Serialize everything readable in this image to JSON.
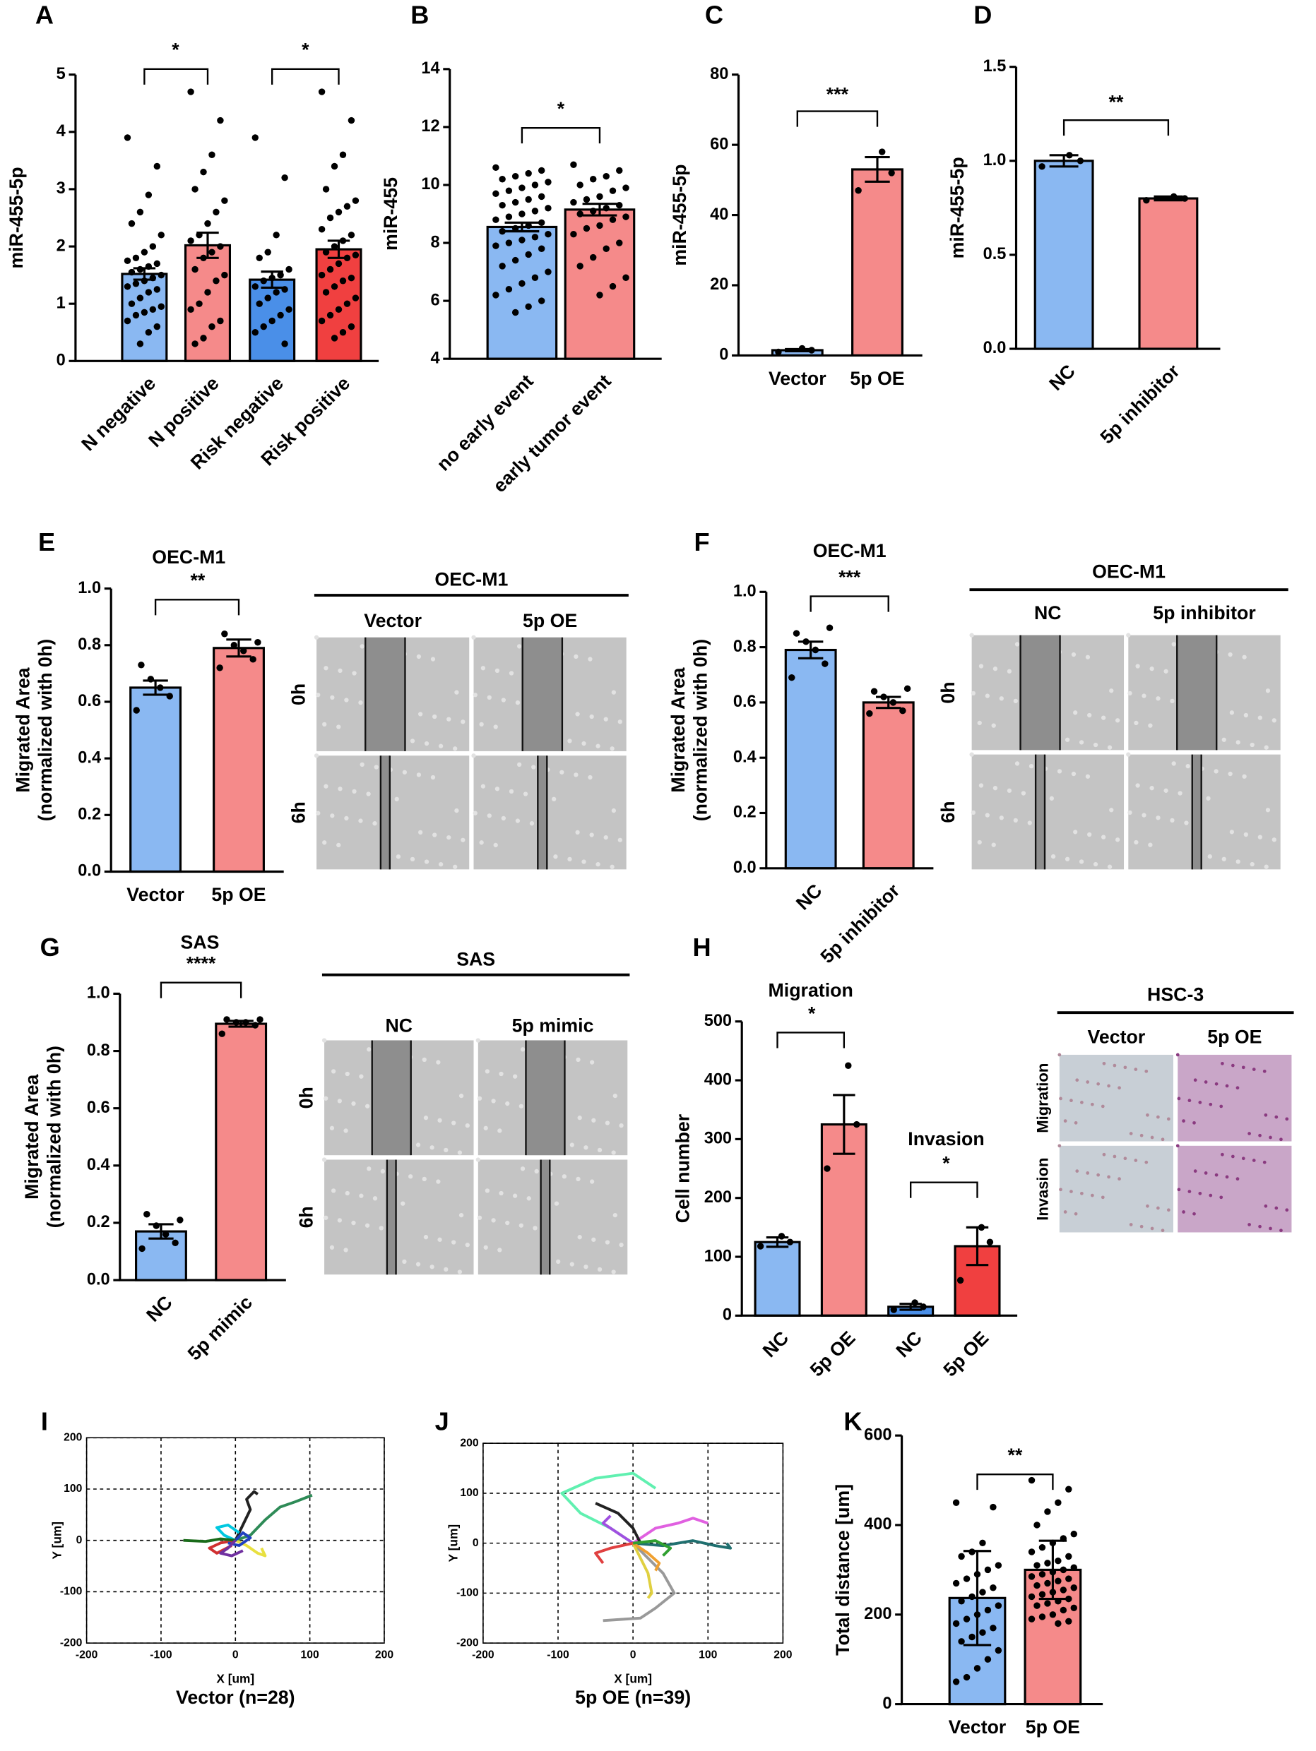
{
  "chart_data": [
    {
      "type": "bar",
      "panel": "A",
      "ylabel": "miR-455-5p",
      "categories": [
        "N negative",
        "N positive",
        "Risk negative",
        "Risk positive"
      ],
      "values": [
        1.52,
        2.02,
        1.42,
        1.95
      ],
      "errors": [
        0.1,
        0.22,
        0.14,
        0.15
      ],
      "colors": [
        "#8ab8f2",
        "#f58a8a",
        "#4a8fe8",
        "#f04040"
      ],
      "ylim": [
        0,
        5
      ],
      "yticks": [
        0,
        1,
        2,
        3,
        4,
        5
      ],
      "annotations": [
        "*",
        "*"
      ],
      "points": [
        [
          3.9,
          3.4,
          2.9,
          2.6,
          2.4,
          2.2,
          2.0,
          1.9,
          1.8,
          1.75,
          1.7,
          1.65,
          1.6,
          1.55,
          1.5,
          1.45,
          1.4,
          1.35,
          1.3,
          1.25,
          1.2,
          1.1,
          1.0,
          0.95,
          0.9,
          0.85,
          0.8,
          0.7,
          0.6,
          0.5,
          0.3
        ],
        [
          4.7,
          4.2,
          3.6,
          3.3,
          3.0,
          2.8,
          2.6,
          2.4,
          2.2,
          2.1,
          2.0,
          1.9,
          1.8,
          1.6,
          1.5,
          1.4,
          1.2,
          1.0,
          0.9,
          0.7,
          0.6,
          0.4,
          0.3
        ],
        [
          3.9,
          3.2,
          2.2,
          1.9,
          1.8,
          1.6,
          1.5,
          1.45,
          1.4,
          1.3,
          1.25,
          1.2,
          1.1,
          1.0,
          0.9,
          0.8,
          0.7,
          0.6,
          0.5,
          0.3
        ],
        [
          4.7,
          4.2,
          3.6,
          3.4,
          3.0,
          2.8,
          2.7,
          2.6,
          2.5,
          2.3,
          2.2,
          2.1,
          2.0,
          1.9,
          1.85,
          1.8,
          1.7,
          1.6,
          1.5,
          1.45,
          1.4,
          1.3,
          1.2,
          1.1,
          1.0,
          0.9,
          0.8,
          0.7,
          0.6,
          0.5,
          0.4
        ]
      ]
    },
    {
      "type": "bar",
      "panel": "B",
      "ylabel": "miR-455",
      "categories": [
        "no early event",
        "early tumor event"
      ],
      "values": [
        8.55,
        9.15
      ],
      "errors": [
        0.15,
        0.2
      ],
      "colors": [
        "#8ab8f2",
        "#f58a8a"
      ],
      "ylim": [
        4,
        14
      ],
      "yticks": [
        4,
        6,
        8,
        10,
        12,
        14
      ],
      "annotations": [
        "*"
      ],
      "points": [
        [
          10.6,
          10.5,
          10.4,
          10.3,
          10.2,
          10.1,
          10.0,
          9.9,
          9.8,
          9.7,
          9.6,
          9.5,
          9.4,
          9.3,
          9.2,
          9.1,
          9.0,
          8.9,
          8.8,
          8.7,
          8.6,
          8.5,
          8.4,
          8.3,
          8.2,
          8.1,
          8.0,
          7.9,
          7.8,
          7.6,
          7.4,
          7.2,
          7.0,
          6.8,
          6.6,
          6.4,
          6.2,
          6.0,
          5.8,
          5.6
        ],
        [
          10.7,
          10.5,
          10.3,
          10.2,
          10.0,
          9.9,
          9.8,
          9.6,
          9.5,
          9.4,
          9.3,
          9.2,
          9.1,
          9.0,
          8.9,
          8.8,
          8.6,
          8.5,
          8.3,
          8.0,
          7.8,
          7.5,
          7.2,
          6.8,
          6.5,
          6.2
        ]
      ]
    },
    {
      "type": "bar",
      "panel": "C",
      "ylabel": "miR-455-5p",
      "categories": [
        "Vector",
        "5p OE"
      ],
      "values": [
        1.5,
        53
      ],
      "errors": [
        0.3,
        3.5
      ],
      "colors": [
        "#8ab8f2",
        "#f58a8a"
      ],
      "ylim": [
        0,
        80
      ],
      "yticks": [
        0,
        20,
        40,
        60,
        80
      ],
      "annotations": [
        "***"
      ],
      "points": [
        [
          1,
          1.5,
          2
        ],
        [
          47,
          52,
          58
        ]
      ]
    },
    {
      "type": "bar",
      "panel": "D",
      "ylabel": "miR-455-5p",
      "categories": [
        "NC",
        "5p inhibitor"
      ],
      "values": [
        1.0,
        0.8
      ],
      "errors": [
        0.03,
        0.01
      ],
      "colors": [
        "#8ab8f2",
        "#f58a8a"
      ],
      "ylim": [
        0,
        1.5
      ],
      "yticks": [
        {
          "value": 0,
          "label": "0.0"
        },
        0.5,
        {
          "value": 1,
          "label": "1.0"
        },
        1.5
      ],
      "annotations": [
        "**"
      ],
      "points": [
        [
          0.97,
          1.0,
          1.03
        ],
        [
          0.79,
          0.8,
          0.81
        ]
      ]
    },
    {
      "type": "bar",
      "panel": "E",
      "title": "OEC-M1",
      "ylabel": "Migrated Area",
      "ylabel2": "(normalized with 0h)",
      "categories": [
        "Vector",
        "5p OE"
      ],
      "values": [
        0.65,
        0.79
      ],
      "errors": [
        0.025,
        0.03
      ],
      "colors": [
        "#8ab8f2",
        "#f58a8a"
      ],
      "ylim": [
        0,
        1
      ],
      "yticks": [
        {
          "value": 0,
          "label": "0.0"
        },
        0.2,
        0.4,
        0.6,
        0.8,
        {
          "value": 1,
          "label": "1.0"
        }
      ],
      "annotations": [
        "**"
      ],
      "points": [
        [
          0.57,
          0.62,
          0.65,
          0.68,
          0.73
        ],
        [
          0.72,
          0.75,
          0.78,
          0.8,
          0.84,
          0.81
        ]
      ]
    },
    {
      "type": "bar",
      "panel": "F",
      "title": "OEC-M1",
      "ylabel": "Migrated Area",
      "ylabel2": "(normalized with 0h)",
      "categories": [
        "NC",
        "5p inhibitor"
      ],
      "values": [
        0.79,
        0.6
      ],
      "errors": [
        0.03,
        0.02
      ],
      "colors": [
        "#8ab8f2",
        "#f58a8a"
      ],
      "ylim": [
        0,
        1
      ],
      "yticks": [
        {
          "value": 0,
          "label": "0.0"
        },
        0.2,
        0.4,
        0.6,
        0.8,
        {
          "value": 1,
          "label": "1.0"
        }
      ],
      "annotations": [
        "***"
      ],
      "points": [
        [
          0.69,
          0.74,
          0.79,
          0.82,
          0.85,
          0.87
        ],
        [
          0.56,
          0.57,
          0.6,
          0.62,
          0.64,
          0.65
        ]
      ]
    },
    {
      "type": "bar",
      "panel": "G",
      "title": "SAS",
      "ylabel": "Migrated Area",
      "ylabel2": "(normalized with 0h)",
      "categories": [
        "NC",
        "5p mimic"
      ],
      "values": [
        0.17,
        0.895
      ],
      "errors": [
        0.025,
        0.01
      ],
      "colors": [
        "#8ab8f2",
        "#f58a8a"
      ],
      "ylim": [
        0,
        1
      ],
      "yticks": [
        {
          "value": 0,
          "label": "0.0"
        },
        0.2,
        0.4,
        0.6,
        0.8,
        {
          "value": 1,
          "label": "1.0"
        }
      ],
      "annotations": [
        "****"
      ],
      "points": [
        [
          0.11,
          0.13,
          0.16,
          0.19,
          0.23,
          0.21
        ],
        [
          0.86,
          0.89,
          0.9,
          0.9,
          0.91,
          0.91
        ]
      ]
    },
    {
      "type": "bar",
      "panel": "H",
      "ylabel": "Cell number",
      "categories": [
        "NC",
        "5p OE",
        "NC",
        "5p OE"
      ],
      "values": [
        125,
        325,
        15,
        118
      ],
      "errors": [
        8,
        50,
        5,
        32
      ],
      "colors": [
        "#8ab8f2",
        "#f58a8a",
        "#4a8fe8",
        "#f04040"
      ],
      "ylim": [
        0,
        500
      ],
      "yticks": [
        0,
        100,
        200,
        300,
        400,
        500
      ],
      "annotations": [
        "Migration",
        "*",
        "Invasion",
        "*"
      ],
      "points": [
        [
          118,
          125,
          135
        ],
        [
          250,
          325,
          425
        ],
        [
          10,
          15,
          22
        ],
        [
          60,
          125,
          150
        ]
      ]
    },
    {
      "type": "trajectory",
      "title": "Vector (n=28)",
      "xlabel": "X [um]",
      "ylabel": "Y [um]",
      "xlim": [
        -200,
        200
      ],
      "ylim": [
        -200,
        200
      ],
      "xticks": [
        -200,
        -100,
        0,
        100,
        200
      ],
      "yticks": [
        -200,
        -100,
        0,
        100,
        200
      ],
      "grid": true,
      "series": [
        {
          "color": "#2e8b57",
          "x": [
            0,
            20,
            40,
            60,
            80,
            103
          ],
          "y": [
            0,
            10,
            40,
            65,
            75,
            88
          ]
        },
        {
          "color": "#222222",
          "x": [
            0,
            10,
            20,
            15,
            25,
            30
          ],
          "y": [
            0,
            30,
            60,
            80,
            95,
            90
          ]
        },
        {
          "color": "#00c8e0",
          "x": [
            0,
            -15,
            -25,
            -10,
            5
          ],
          "y": [
            0,
            10,
            25,
            30,
            15
          ]
        },
        {
          "color": "#e8e040",
          "x": [
            0,
            15,
            30,
            40,
            35
          ],
          "y": [
            0,
            -10,
            -25,
            -30,
            -15
          ]
        },
        {
          "color": "#d03030",
          "x": [
            0,
            -20,
            -35,
            -25,
            -5
          ],
          "y": [
            0,
            -5,
            -15,
            -25,
            -10
          ]
        },
        {
          "color": "#2040c0",
          "x": [
            0,
            10,
            20,
            5,
            -10
          ],
          "y": [
            0,
            15,
            5,
            -10,
            -5
          ]
        },
        {
          "color": "#1a6b1a",
          "x": [
            -70,
            -40,
            -20,
            0
          ],
          "y": [
            0,
            -2,
            3,
            0
          ]
        },
        {
          "color": "#7030a0",
          "x": [
            0,
            -10,
            -20,
            -5,
            10
          ],
          "y": [
            0,
            -15,
            -25,
            -30,
            -20
          ]
        }
      ]
    },
    {
      "type": "trajectory",
      "title": "5p OE (n=39)",
      "xlabel": "X [um]",
      "ylabel": "Y [um]",
      "xlim": [
        -200,
        200
      ],
      "ylim": [
        -200,
        200
      ],
      "xticks": [
        -200,
        -100,
        0,
        100,
        200
      ],
      "yticks": [
        -200,
        -100,
        0,
        100,
        200
      ],
      "grid": true,
      "series": [
        {
          "color": "#60f0b0",
          "x": [
            0,
            -30,
            -70,
            -95,
            -50,
            0,
            30
          ],
          "y": [
            0,
            30,
            60,
            100,
            130,
            140,
            110
          ]
        },
        {
          "color": "#999999",
          "x": [
            0,
            20,
            40,
            55,
            30,
            10,
            -40
          ],
          "y": [
            0,
            -30,
            -60,
            -100,
            -130,
            -150,
            -155
          ]
        },
        {
          "color": "#e060e0",
          "x": [
            0,
            30,
            60,
            80,
            100
          ],
          "y": [
            0,
            30,
            40,
            50,
            40
          ]
        },
        {
          "color": "#207070",
          "x": [
            0,
            40,
            80,
            110,
            130,
            125
          ],
          "y": [
            0,
            -5,
            5,
            -5,
            -10,
            0
          ]
        },
        {
          "color": "#a050e0",
          "x": [
            0,
            -20,
            -40,
            -30
          ],
          "y": [
            0,
            20,
            40,
            55
          ]
        },
        {
          "color": "#e0d040",
          "x": [
            0,
            10,
            20,
            25,
            20
          ],
          "y": [
            0,
            -30,
            -60,
            -100,
            -110
          ]
        },
        {
          "color": "#222222",
          "x": [
            -50,
            -20,
            0,
            10
          ],
          "y": [
            80,
            60,
            30,
            0
          ]
        },
        {
          "color": "#e04040",
          "x": [
            0,
            -30,
            -50,
            -40
          ],
          "y": [
            0,
            -10,
            -20,
            -40
          ]
        },
        {
          "color": "#f0a030",
          "x": [
            0,
            20,
            35,
            30
          ],
          "y": [
            0,
            -20,
            -40,
            -55
          ]
        },
        {
          "color": "#30a030",
          "x": [
            0,
            30,
            50,
            40
          ],
          "y": [
            0,
            5,
            -10,
            -25
          ]
        }
      ]
    },
    {
      "type": "bar",
      "panel": "K",
      "ylabel": "Total distance [um]",
      "categories": [
        "Vector",
        "5p OE"
      ],
      "values": [
        237,
        300
      ],
      "errors": [
        105,
        65
      ],
      "colors": [
        "#8ab8f2",
        "#f58a8a"
      ],
      "ylim": [
        0,
        600
      ],
      "yticks": [
        0,
        200,
        400,
        600
      ],
      "annotations": [
        "**"
      ],
      "points": [
        [
          450,
          440,
          360,
          340,
          330,
          310,
          300,
          290,
          280,
          270,
          260,
          250,
          240,
          230,
          220,
          210,
          200,
          190,
          180,
          170,
          160,
          150,
          140,
          120,
          100,
          80,
          60,
          50
        ],
        [
          500,
          480,
          450,
          430,
          400,
          380,
          370,
          360,
          350,
          340,
          330,
          320,
          315,
          310,
          305,
          300,
          295,
          290,
          285,
          280,
          275,
          270,
          265,
          260,
          255,
          250,
          245,
          240,
          235,
          230,
          225,
          220,
          215,
          210,
          200,
          195,
          190,
          185,
          180
        ]
      ]
    }
  ],
  "letters": {
    "I": "I",
    "J": "J"
  },
  "micrographs": [
    {
      "header": "OEC-M1",
      "columns": [
        "Vector",
        "5p OE"
      ],
      "rows": [
        "0h",
        "6h"
      ]
    },
    {
      "header": "OEC-M1",
      "columns": [
        "NC",
        "5p inhibitor"
      ],
      "rows": [
        "0h",
        "6h"
      ]
    },
    {
      "header": "SAS",
      "columns": [
        "NC",
        "5p mimic"
      ],
      "rows": [
        "0h",
        "6h"
      ]
    },
    {
      "header": "HSC-3",
      "columns": [
        "Vector",
        "5p OE"
      ],
      "rows": [
        "Migration",
        "Invasion"
      ]
    }
  ]
}
